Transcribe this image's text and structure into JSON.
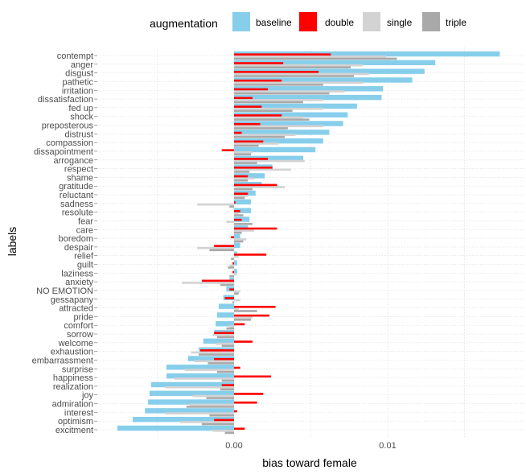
{
  "chart_data": {
    "type": "bar",
    "orientation": "horizontal",
    "xlabel": "bias toward female",
    "ylabel": "labels",
    "xlim": [
      -0.0089,
      0.0183
    ],
    "x_ticks": [
      0.0,
      0.01
    ],
    "x_tick_labels": [
      "0.00",
      "0.01"
    ],
    "grid": true,
    "legend_position": "top",
    "legend": {
      "title": "augmentation",
      "entries": [
        {
          "name": "baseline",
          "color": "#87CEEB"
        },
        {
          "name": "double",
          "color": "#FF0000"
        },
        {
          "name": "single",
          "color": "#D3D3D3"
        },
        {
          "name": "triple",
          "color": "#A9A9A9"
        }
      ]
    },
    "categories": [
      "contempt",
      "anger",
      "disgust",
      "pathetic",
      "irritation",
      "dissatisfaction",
      "fed up",
      "shock",
      "preposterous",
      "distrust",
      "compassion",
      "dissapointment",
      "arrogance",
      "respect",
      "shame",
      "gratitude",
      "reluctant",
      "sadness",
      "resolute",
      "fear",
      "care",
      "boredom",
      "despair",
      "relief",
      "guilt",
      "laziness",
      "anxiety",
      "NO EMOTION",
      "gessapany",
      "attracted",
      "pride",
      "comfort",
      "sorrow",
      "welcome",
      "exhaustion",
      "embarrassment",
      "surprise",
      "happiness",
      "realization",
      "joy",
      "admiration",
      "interest",
      "optimism",
      "excitment"
    ],
    "series": [
      {
        "name": "baseline",
        "values": [
          0.0173,
          0.0131,
          0.0124,
          0.0116,
          0.0097,
          0.0096,
          0.008,
          0.0074,
          0.0071,
          0.0062,
          0.0058,
          0.0053,
          0.0045,
          0.0025,
          0.002,
          0.0018,
          0.0014,
          0.0011,
          0.0011,
          0.001,
          0.0009,
          0.0004,
          0.0004,
          0.0002,
          0.0002,
          0.0002,
          -0.0003,
          -0.0005,
          -0.0007,
          -0.001,
          -0.0011,
          -0.0012,
          -0.0013,
          -0.002,
          -0.0023,
          -0.003,
          -0.0044,
          -0.0044,
          -0.0054,
          -0.0055,
          -0.0056,
          -0.0058,
          -0.0066,
          -0.0076
        ]
      },
      {
        "name": "double",
        "values": [
          0.0063,
          0.0032,
          0.0055,
          0.0031,
          0.0022,
          0.0012,
          0.0018,
          0.0031,
          0.0017,
          0.0005,
          0.0019,
          -0.0008,
          0.0022,
          0.0025,
          0.0009,
          0.0028,
          0.0009,
          0.0001,
          0.0004,
          0.0005,
          0.0028,
          -0.0002,
          -0.0013,
          0.0021,
          -0.0001,
          -0.0001,
          -0.0021,
          -0.0003,
          -0.0006,
          0.0027,
          0.0023,
          0.0007,
          -0.0013,
          0.0012,
          -0.0022,
          -0.0013,
          0.0004,
          0.0024,
          -0.0008,
          0.0019,
          0.0015,
          0.0002,
          -0.0013,
          0.0007
        ]
      },
      {
        "name": "single",
        "values": [
          0.0099,
          0.0084,
          0.0088,
          0.0084,
          0.0072,
          0.0058,
          0.0058,
          0.0045,
          0.0058,
          0.004,
          0.0029,
          0.0012,
          0.0046,
          0.0037,
          0.0013,
          0.0033,
          0.0009,
          -0.0024,
          0.0003,
          -0.0005,
          0.0013,
          0.0008,
          -0.0024,
          0.0003,
          -0.0003,
          0.0002,
          -0.0034,
          0.0004,
          0.0004,
          0.0003,
          0.0012,
          -0.0003,
          -0.0014,
          -0.0012,
          -0.0028,
          -0.0026,
          -0.0032,
          -0.0039,
          -0.0045,
          -0.0027,
          -0.0029,
          -0.0045,
          -0.0035,
          -0.0014
        ]
      },
      {
        "name": "triple",
        "values": [
          0.0106,
          0.0076,
          0.0078,
          0.0058,
          0.0062,
          0.0045,
          0.0038,
          0.0049,
          0.0035,
          0.0033,
          0.0016,
          0.0011,
          0.0015,
          0.001,
          0.0009,
          0.0012,
          0.0007,
          -0.0003,
          0.0006,
          0.0012,
          0.0005,
          0.0006,
          -0.0016,
          -0.0002,
          -0.0004,
          -0.0003,
          -0.0009,
          0.0003,
          -0.0001,
          0.0015,
          0.0011,
          -0.0005,
          -0.0011,
          -0.0008,
          -0.0023,
          -0.0017,
          -0.0011,
          -0.0008,
          -0.0009,
          -0.0018,
          -0.0031,
          -0.0016,
          -0.0021,
          -0.0006
        ]
      }
    ]
  }
}
